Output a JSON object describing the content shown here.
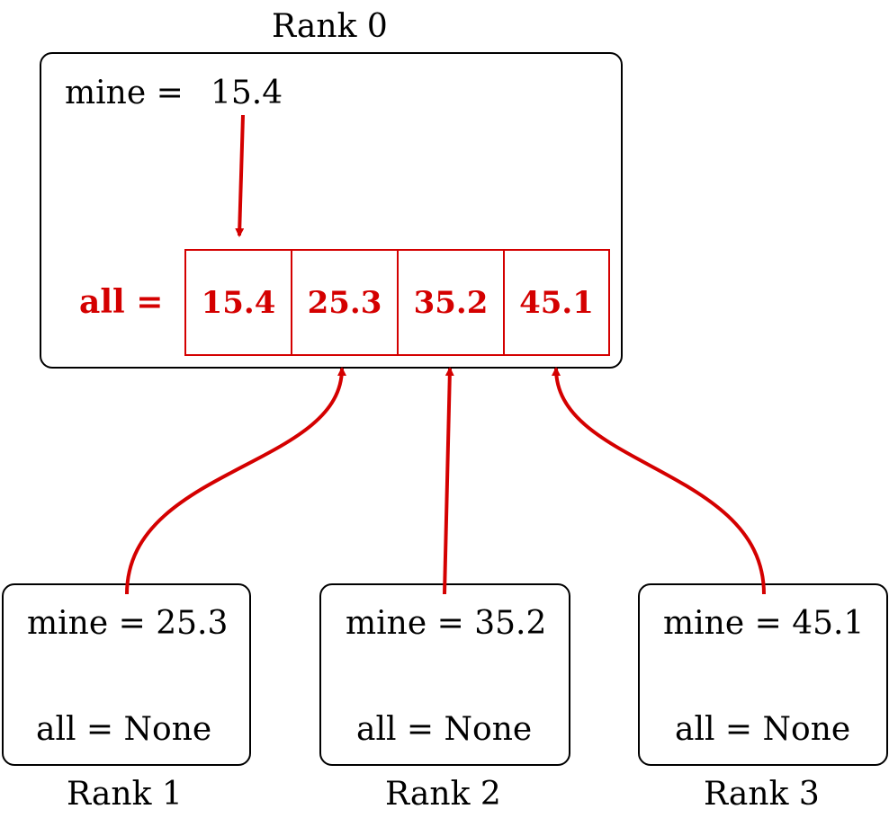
{
  "rank0": {
    "title": "Rank 0",
    "mine_label": "mine =",
    "mine_value": "15.4",
    "all_label": "all =",
    "all_values": [
      "15.4",
      "25.3",
      "35.2",
      "45.1"
    ]
  },
  "rank1": {
    "title": "Rank 1",
    "mine_text": "mine = 25.3",
    "all_text": "all = None"
  },
  "rank2": {
    "title": "Rank 2",
    "mine_text": "mine = 35.2",
    "all_text": "all = None"
  },
  "rank3": {
    "title": "Rank 3",
    "mine_text": "mine = 45.1",
    "all_text": "all = None"
  },
  "colors": {
    "accent": "#d40000",
    "stroke": "#000000"
  }
}
